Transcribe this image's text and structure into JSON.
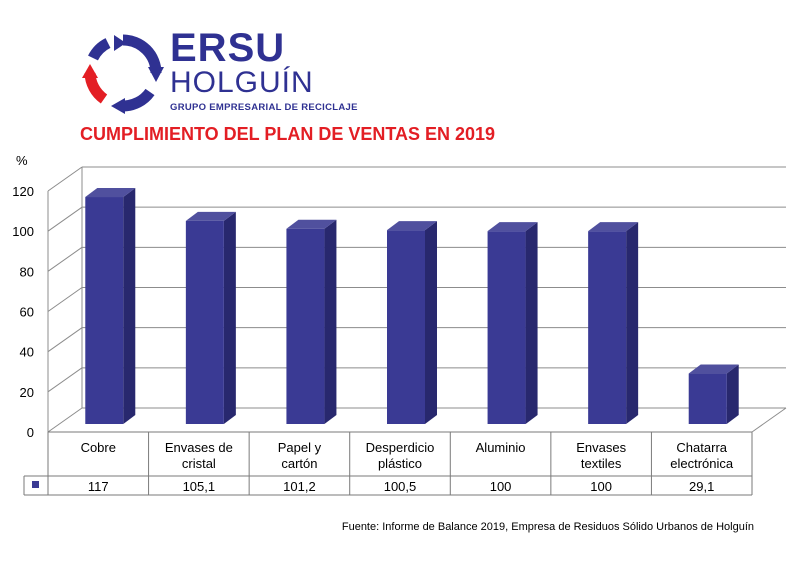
{
  "logo": {
    "name": "ERSU",
    "city": "HOLGUÍN",
    "tagline": "GRUPO EMPRESARIAL DE RECICLAJE"
  },
  "chart_data": {
    "type": "bar",
    "title": "CUMPLIMIENTO DEL PLAN DE VENTAS EN 2019",
    "ylabel": "%",
    "ylim": [
      0,
      120
    ],
    "yticks": [
      0,
      20,
      40,
      60,
      80,
      100,
      120
    ],
    "grid": true,
    "legend": "data-table",
    "categories": [
      [
        "Cobre"
      ],
      [
        "Envases de",
        "cristal"
      ],
      [
        "Papel y",
        "cartón"
      ],
      [
        "Desperdicio",
        "plástico"
      ],
      [
        "Aluminio"
      ],
      [
        "Envases",
        "textiles"
      ],
      [
        "Chatarra",
        "electrónica"
      ]
    ],
    "values": [
      117,
      105.1,
      101.2,
      100.5,
      100,
      100,
      29.1
    ],
    "value_labels": [
      "117",
      "105,1",
      "101,2",
      "100,5",
      "100",
      "100",
      "29,1"
    ],
    "colors": {
      "bar_front": "#3a3a94",
      "bar_side": "#28286e",
      "bar_top": "#50509e",
      "title": "#e31e24"
    }
  },
  "source": "Fuente: Informe de Balance 2019, Empresa de Residuos Sólido Urbanos de Holguín"
}
